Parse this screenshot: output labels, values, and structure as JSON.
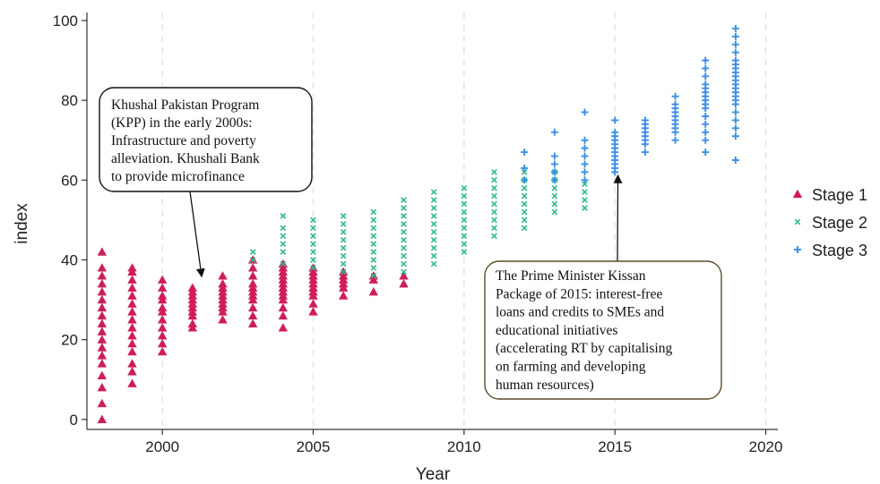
{
  "chart_data": {
    "type": "scatter",
    "xlabel": "Year",
    "ylabel": "index",
    "xlim": [
      1997.5,
      2020.4
    ],
    "ylim": [
      -2.5,
      102
    ],
    "xticks": [
      2000,
      2005,
      2010,
      2015,
      2020
    ],
    "yticks": [
      0,
      20,
      40,
      60,
      80,
      100
    ],
    "grid": "vertical dashed",
    "legend_position": "right",
    "colors": {
      "Stage 1": "#d01c5b",
      "Stage 2": "#2dba8a",
      "Stage 3": "#3b8ee8"
    },
    "series": [
      {
        "name": "Stage 1",
        "marker": "triangle",
        "points": [
          {
            "year": 1998,
            "values": [
              0,
              4,
              8,
              11,
              14,
              16,
              18,
              20,
              22,
              24,
              26,
              28,
              30,
              32,
              34,
              36,
              38,
              42
            ]
          },
          {
            "year": 1999,
            "values": [
              9,
              12,
              14,
              17,
              19,
              21,
              23,
              25,
              27,
              29,
              31,
              33,
              35,
              37,
              38
            ]
          },
          {
            "year": 2000,
            "values": [
              17,
              19,
              21,
              23,
              25,
              27,
              28,
              30,
              31,
              33,
              35
            ]
          },
          {
            "year": 2001,
            "values": [
              23,
              24,
              26,
              27,
              28,
              29,
              30,
              31,
              32,
              33
            ]
          },
          {
            "year": 2002,
            "values": [
              25,
              27,
              28,
              29,
              30,
              31,
              32,
              33,
              34,
              36
            ]
          },
          {
            "year": 2003,
            "values": [
              24,
              26,
              28,
              30,
              31,
              32,
              33,
              34,
              36,
              38,
              40
            ]
          },
          {
            "year": 2004,
            "values": [
              23,
              26,
              28,
              30,
              31,
              32,
              33,
              34,
              35,
              36,
              37,
              38,
              39
            ]
          },
          {
            "year": 2005,
            "values": [
              27,
              29,
              31,
              32,
              33,
              34,
              35,
              36,
              37,
              38
            ]
          },
          {
            "year": 2006,
            "values": [
              31,
              33,
              34,
              35,
              36,
              37
            ]
          },
          {
            "year": 2007,
            "values": [
              32,
              35,
              36
            ]
          },
          {
            "year": 2008,
            "values": [
              34,
              36
            ]
          }
        ]
      },
      {
        "name": "Stage 2",
        "marker": "x",
        "points": [
          {
            "year": 2003,
            "values": [
              40,
              42
            ]
          },
          {
            "year": 2004,
            "values": [
              39,
              42,
              44,
              46,
              48,
              51
            ]
          },
          {
            "year": 2005,
            "values": [
              38,
              40,
              42,
              44,
              46,
              48,
              50
            ]
          },
          {
            "year": 2006,
            "values": [
              37,
              39,
              41,
              43,
              45,
              47,
              49,
              51
            ]
          },
          {
            "year": 2007,
            "values": [
              36,
              38,
              40,
              42,
              44,
              46,
              48,
              50,
              52
            ]
          },
          {
            "year": 2008,
            "values": [
              37,
              39,
              41,
              43,
              45,
              47,
              49,
              51,
              53,
              55
            ]
          },
          {
            "year": 2009,
            "values": [
              39,
              41,
              43,
              45,
              47,
              49,
              51,
              53,
              55,
              57
            ]
          },
          {
            "year": 2010,
            "values": [
              42,
              44,
              46,
              48,
              50,
              52,
              54,
              56,
              58
            ]
          },
          {
            "year": 2011,
            "values": [
              46,
              48,
              50,
              52,
              54,
              56,
              58,
              60,
              62
            ]
          },
          {
            "year": 2012,
            "values": [
              48,
              50,
              52,
              54,
              56,
              58,
              60,
              62
            ]
          },
          {
            "year": 2013,
            "values": [
              52,
              54,
              56,
              58,
              60,
              62
            ]
          },
          {
            "year": 2014,
            "values": [
              53,
              55,
              57,
              59
            ]
          }
        ]
      },
      {
        "name": "Stage 3",
        "marker": "plus",
        "points": [
          {
            "year": 2012,
            "values": [
              60,
              63,
              67
            ]
          },
          {
            "year": 2013,
            "values": [
              60,
              62,
              64,
              66,
              72
            ]
          },
          {
            "year": 2014,
            "values": [
              60,
              62,
              64,
              66,
              68,
              70,
              77
            ]
          },
          {
            "year": 2015,
            "values": [
              62,
              63,
              64,
              65,
              66,
              67,
              68,
              69,
              70,
              71,
              72,
              75
            ]
          },
          {
            "year": 2016,
            "values": [
              67,
              69,
              70,
              71,
              72,
              73,
              74,
              75
            ]
          },
          {
            "year": 2017,
            "values": [
              70,
              72,
              73,
              74,
              75,
              76,
              77,
              78,
              79,
              81
            ]
          },
          {
            "year": 2018,
            "values": [
              67,
              70,
              72,
              74,
              76,
              78,
              79,
              80,
              81,
              82,
              83,
              84,
              86,
              88,
              90
            ]
          },
          {
            "year": 2019,
            "values": [
              65,
              71,
              73,
              75,
              77,
              79,
              80,
              81,
              82,
              83,
              84,
              85,
              86,
              87,
              88,
              89,
              90,
              92,
              94,
              96,
              98
            ]
          }
        ]
      }
    ],
    "annotations": [
      {
        "lines": [
          "Khushal Pakistan Program",
          "(KPP) in the early 2000s:",
          "Infrastructure and poverty",
          "alleviation. Khushali Bank",
          "to provide microfinance"
        ],
        "arrow_to": {
          "year": 2001.3,
          "value": 36
        }
      },
      {
        "lines": [
          "The Prime Minister Kissan",
          "Package of 2015: interest-free",
          "loans and credits to SMEs and",
          "educational initiatives",
          "(accelerating RT by capitalising",
          "on farming and developing",
          "human resources)"
        ],
        "arrow_to": {
          "year": 2015.1,
          "value": 61
        }
      }
    ]
  }
}
